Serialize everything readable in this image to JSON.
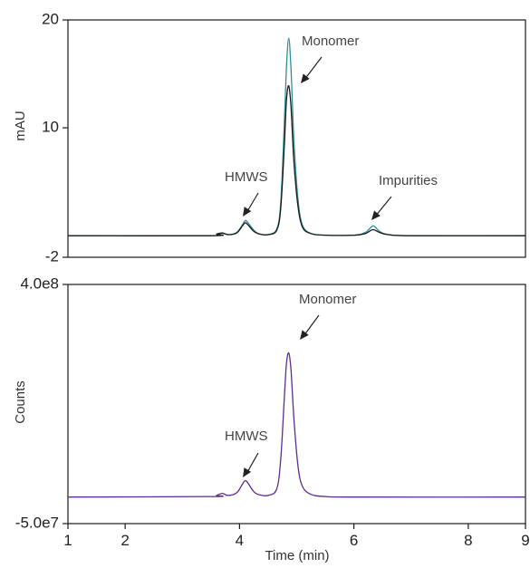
{
  "chart_data": [
    {
      "type": "line",
      "title": "",
      "xlabel": "",
      "ylabel": "mAU",
      "xlim": [
        1,
        9
      ],
      "ylim": [
        -2,
        20
      ],
      "y_tick_labels": [
        "20",
        "10",
        "-2"
      ],
      "y_ticks": [
        20,
        10,
        -2
      ],
      "grid": false,
      "series": [
        {
          "color": "#2e8f96",
          "x": [
            1.0,
            3.5,
            3.6,
            3.7,
            3.8,
            3.95,
            4.05,
            4.1,
            4.15,
            4.25,
            4.35,
            4.5,
            4.65,
            4.72,
            4.78,
            4.82,
            4.86,
            4.9,
            4.95,
            5.02,
            5.1,
            5.25,
            5.5,
            6.0,
            6.2,
            6.3,
            6.35,
            6.45,
            6.6,
            7.0,
            9.0
          ],
          "y": [
            0.0,
            0.0,
            0.15,
            0.25,
            0.1,
            0.3,
            1.0,
            1.4,
            1.2,
            0.5,
            0.15,
            0.1,
            0.6,
            3.0,
            10.0,
            15.5,
            18.3,
            15.5,
            9.0,
            3.5,
            1.0,
            0.2,
            0.05,
            0.05,
            0.3,
            0.8,
            0.9,
            0.4,
            0.1,
            0.0,
            0.0
          ]
        },
        {
          "color": "#1a1a1a",
          "x": [
            1.0,
            3.5,
            3.6,
            3.7,
            3.8,
            3.95,
            4.05,
            4.1,
            4.15,
            4.25,
            4.35,
            4.5,
            4.65,
            4.72,
            4.78,
            4.82,
            4.86,
            4.9,
            4.95,
            5.02,
            5.1,
            5.25,
            5.5,
            6.0,
            6.2,
            6.3,
            6.35,
            6.45,
            6.6,
            7.0,
            9.0
          ],
          "y": [
            0.0,
            0.0,
            0.15,
            0.25,
            0.1,
            0.25,
            0.9,
            1.2,
            1.0,
            0.4,
            0.15,
            0.1,
            0.5,
            2.5,
            8.0,
            12.5,
            13.9,
            12.0,
            7.0,
            2.8,
            0.8,
            0.2,
            0.05,
            0.05,
            0.2,
            0.5,
            0.55,
            0.3,
            0.1,
            0.0,
            0.0
          ]
        }
      ],
      "annotations": [
        {
          "text": "Monomer",
          "target": [
            4.95,
            14.2
          ]
        },
        {
          "text": "HMWS",
          "target": [
            4.1,
            1.7
          ]
        },
        {
          "text": "Impurities",
          "target": [
            6.3,
            1.3
          ]
        }
      ]
    },
    {
      "type": "line",
      "title": "",
      "xlabel": "Time (min)",
      "ylabel": "Counts",
      "xlim": [
        1,
        9
      ],
      "ylim": [
        -50000000,
        400000000
      ],
      "x_ticks": [
        1,
        2,
        4,
        6,
        8,
        9
      ],
      "x_tick_labels": [
        "1",
        "2",
        "4",
        "6",
        "8",
        "9"
      ],
      "y_ticks": [
        400000000,
        -50000000
      ],
      "y_tick_labels": [
        "4.0e8",
        "-5.0e7"
      ],
      "tick_label_color": "#b0409b",
      "grid": false,
      "series": [
        {
          "color": "#5c2d91",
          "x": [
            1.0,
            3.5,
            3.6,
            3.7,
            3.8,
            3.95,
            4.05,
            4.1,
            4.15,
            4.25,
            4.35,
            4.5,
            4.65,
            4.72,
            4.78,
            4.82,
            4.86,
            4.9,
            4.95,
            5.02,
            5.1,
            5.25,
            5.5,
            6.0,
            9.0
          ],
          "y": [
            0,
            1000000,
            3000000,
            7000000,
            3000000,
            8000000,
            24000000,
            31000000,
            26000000,
            10000000,
            4000000,
            3000000,
            15000000,
            70000000,
            180000000,
            250000000,
            271000000,
            240000000,
            150000000,
            60000000,
            20000000,
            5000000,
            1000000,
            0,
            0
          ]
        }
      ],
      "annotations": [
        {
          "text": "Monomer",
          "target": [
            4.95,
            240000000
          ]
        },
        {
          "text": "HMWS",
          "target": [
            4.1,
            36000000
          ]
        }
      ]
    }
  ]
}
